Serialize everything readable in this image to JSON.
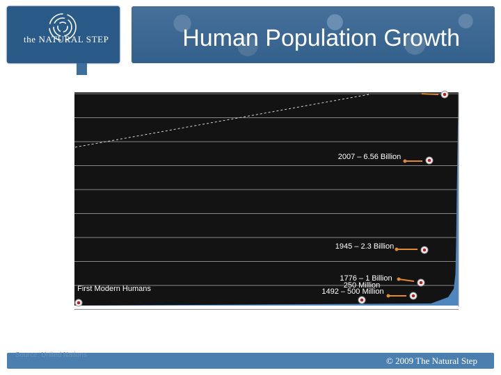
{
  "header": {
    "logo_text": "the NATURAL STEP",
    "title": "Human Population Growth"
  },
  "colors": {
    "chart_background": "#131313",
    "area_fill": "#4f86bd",
    "marker": "#b31f24",
    "arrow": "#e08a34",
    "brand_blue": "#2a5a88"
  },
  "chart_data": {
    "type": "area",
    "title": "",
    "xlabel": "",
    "ylabel": "",
    "grid": true,
    "x_display": "none",
    "y_display": "none",
    "series": [
      {
        "values": [
          {
            "x": 0,
            "y": 0.0
          },
          {
            "x": 0.6,
            "y": 0.01
          },
          {
            "x": 0.85,
            "y": 0.04
          },
          {
            "x": 0.93,
            "y": 0.08
          },
          {
            "x": 0.955,
            "y": 0.15
          },
          {
            "x": 0.965,
            "y": 0.3
          },
          {
            "x": 0.975,
            "y": 0.55
          },
          {
            "x": 0.99,
            "y": 0.85
          },
          {
            "x": 1.0,
            "y": 1.0
          }
        ]
      }
    ],
    "annotations": [
      {
        "label": "2007 – 6.56 Billion"
      },
      {
        "label": "1945 – 2.3 Billion"
      },
      {
        "label": "1776 – 1 Billion"
      },
      {
        "label": "250 Million"
      },
      {
        "label": "1492 – 500 Million"
      },
      {
        "label": "First Modern Humans"
      }
    ]
  },
  "footer": {
    "source": "Source: United Nations",
    "copyright": "© 2009 The Natural Step"
  }
}
